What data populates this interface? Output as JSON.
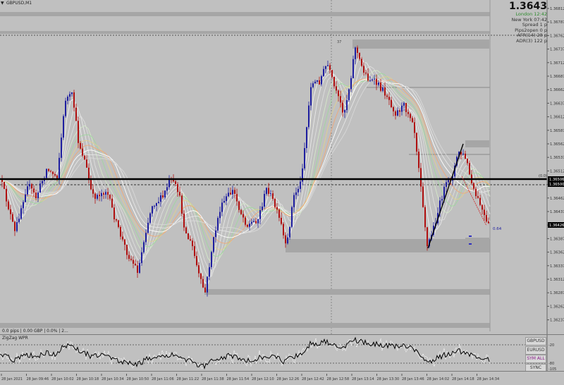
{
  "header": {
    "symbol_label": "GBPUSD,M1",
    "menu_icon": "triangle-down-icon"
  },
  "info_panel": {
    "current_price": "1.3643",
    "lines": [
      {
        "label": "London",
        "value": "12:42",
        "color": "#2e8b2e"
      },
      {
        "label": "New York",
        "value": "07:42",
        "color": "#333333"
      },
      {
        "label": "Spread",
        "value": "1 p",
        "color": "#333333"
      },
      {
        "label": "Pips2open",
        "value": "0 p",
        "color": "#333333"
      },
      {
        "label": "AFR(14)",
        "value": "28 p",
        "color": "#333333"
      },
      {
        "label": "ADR(3)",
        "value": "122 p",
        "color": "#333333"
      }
    ]
  },
  "price_axis": {
    "ticks": [
      "1.36812",
      "1.36787",
      "1.36762",
      "1.36737",
      "1.36712",
      "1.36687",
      "1.36662",
      "1.36637",
      "1.36612",
      "1.36587",
      "1.36562",
      "1.36537",
      "1.36512",
      "1.36487",
      "1.36462",
      "1.36437",
      "1.36412",
      "1.36387",
      "1.36362",
      "1.36337",
      "1.36312",
      "1.36287",
      "1.36262",
      "1.36237"
    ],
    "badges": [
      {
        "text": "1.36506",
        "color": "#000000",
        "text_color": "#ffffff"
      },
      {
        "text": "1.36500",
        "color": "#000000",
        "text_color": "#ffffff"
      },
      {
        "text": "1.36426",
        "color": "#000000",
        "text_color": "#ffffff"
      }
    ],
    "zero_label": "(0.0)"
  },
  "annotations": {
    "top_marker": "37",
    "pips_label": "0.64"
  },
  "status_bar": {
    "text": "0.0 pips | 0.00 GBP | 0.0% | 2..."
  },
  "indicator": {
    "label": "ZigZag WPR",
    "scale_top": "-20",
    "scale_bottom": "-80",
    "scale_min": "-105"
  },
  "symbol_buttons": [
    {
      "label": "GBPUSD",
      "active": false
    },
    {
      "label": "EURUSD",
      "active": false
    },
    {
      "label": "SYM ALL",
      "active": true
    },
    {
      "label": "SYNC",
      "active": false
    }
  ],
  "time_axis": {
    "labels": [
      "28 Jan 2021",
      "28 Jan 09:46",
      "28 Jan 10:02",
      "28 Jan 10:18",
      "28 Jan 10:34",
      "28 Jan 10:50",
      "28 Jan 11:06",
      "28 Jan 11:22",
      "28 Jan 11:38",
      "28 Jan 11:54",
      "28 Jan 12:10",
      "28 Jan 12:26",
      "28 Jan 12:42",
      "28 Jan 12:58",
      "28 Jan 13:14",
      "28 Jan 13:30",
      "28 Jan 13:46",
      "28 Jan 14:02",
      "28 Jan 14:18",
      "28 Jan 14:34"
    ]
  },
  "colors": {
    "background": "#c0c0c0",
    "bull_candle": "#1e1ea0",
    "bear_candle": "#b01010",
    "zone_fill": "#a8a8a8",
    "horizontal_line": "#000000"
  }
}
